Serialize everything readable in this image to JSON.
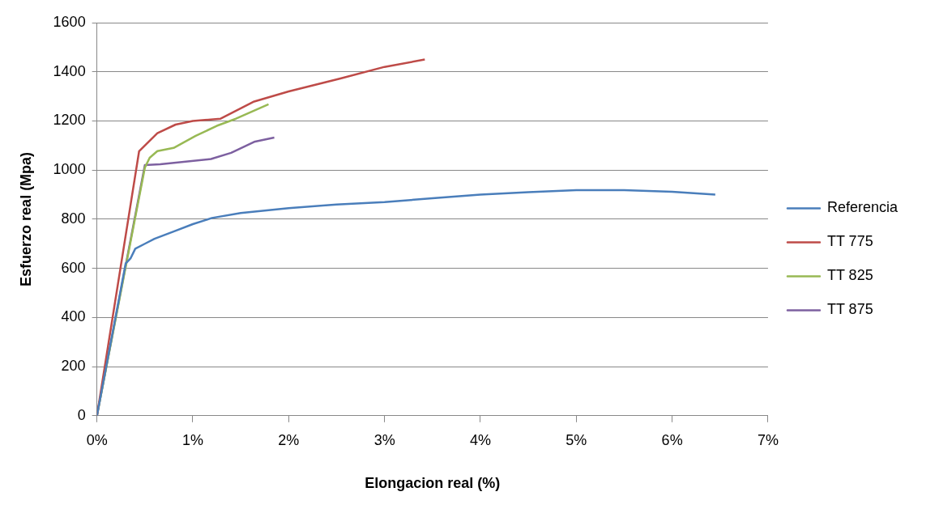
{
  "chart_data": {
    "type": "line",
    "xlabel": "Elongacion real (%)",
    "ylabel": "Esfuerzo real (Mpa)",
    "xlim": [
      0,
      7
    ],
    "xticks": [
      {
        "value": 0,
        "label": "0%"
      },
      {
        "value": 1,
        "label": "1%"
      },
      {
        "value": 2,
        "label": "2%"
      },
      {
        "value": 3,
        "label": "3%"
      },
      {
        "value": 4,
        "label": "4%"
      },
      {
        "value": 5,
        "label": "5%"
      },
      {
        "value": 6,
        "label": "6%"
      },
      {
        "value": 7,
        "label": "7%"
      }
    ],
    "ylim": [
      0,
      1600
    ],
    "yticks": [
      0,
      200,
      400,
      600,
      800,
      1000,
      1200,
      1400,
      1600
    ],
    "grid": "y",
    "legend": "right",
    "marker": "none",
    "series": [
      {
        "name": "Referencia",
        "color": "#4a7ebb",
        "x": [
          0,
          0.3,
          0.35,
          0.4,
          0.5,
          0.6,
          0.8,
          1.0,
          1.2,
          1.5,
          2,
          2.5,
          3,
          3.5,
          4,
          4.5,
          5,
          5.5,
          6,
          6.45
        ],
        "values": [
          0,
          620,
          640,
          680,
          700,
          720,
          750,
          780,
          805,
          825,
          845,
          860,
          870,
          885,
          900,
          910,
          918,
          918,
          912,
          900
        ]
      },
      {
        "name": "TT 775",
        "color": "#be4b48",
        "x": [
          0,
          0.44,
          0.63,
          0.82,
          1.0,
          1.29,
          1.64,
          2.0,
          2.54,
          3.0,
          3.42
        ],
        "values": [
          0,
          1077,
          1150,
          1185,
          1200,
          1209,
          1279,
          1320,
          1373,
          1420,
          1450
        ]
      },
      {
        "name": "TT 825",
        "color": "#98b954",
        "x": [
          0,
          0.5,
          0.55,
          0.63,
          0.8,
          1.03,
          1.25,
          1.45,
          1.79
        ],
        "values": [
          0,
          1010,
          1050,
          1077,
          1090,
          1139,
          1180,
          1209,
          1268
        ]
      },
      {
        "name": "TT 875",
        "color": "#7d60a0",
        "x": [
          0,
          0.5,
          0.66,
          1.19,
          1.4,
          1.64,
          1.85
        ],
        "values": [
          0,
          1020,
          1024,
          1045,
          1070,
          1115,
          1132
        ]
      }
    ]
  }
}
